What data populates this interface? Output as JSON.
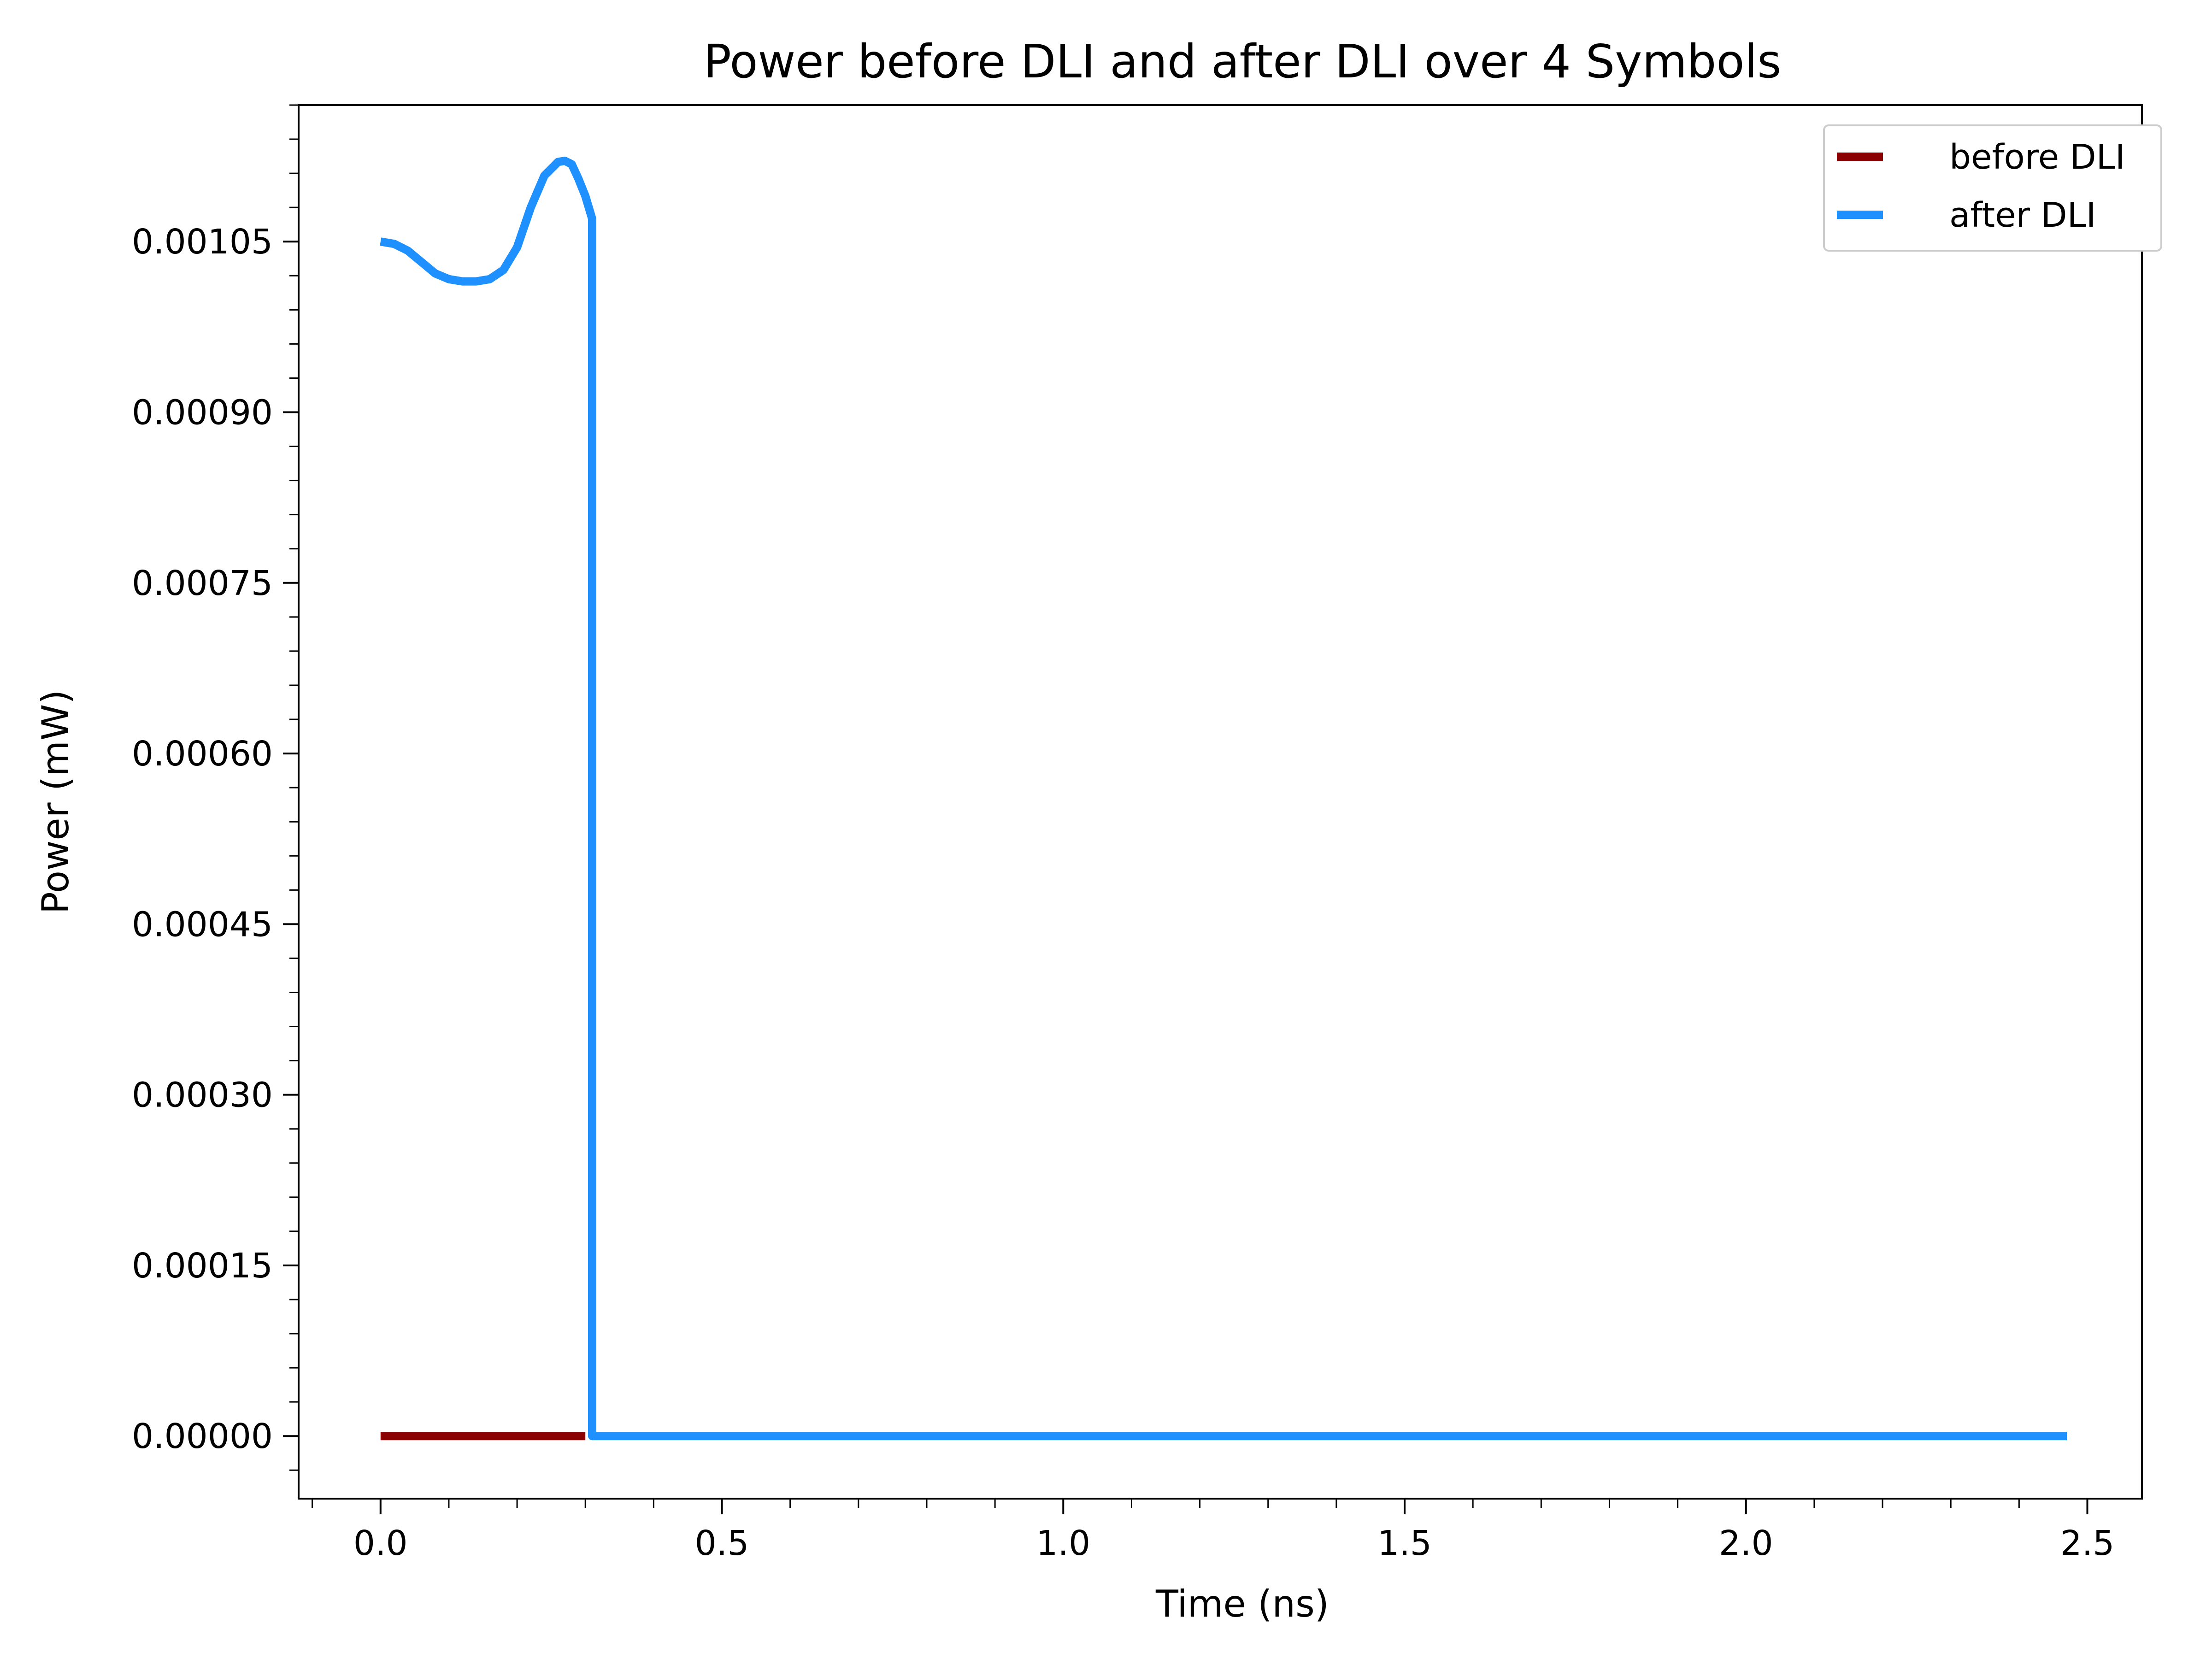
{
  "chart_data": {
    "type": "line",
    "title": "Power before DLI and after DLI over 4 Symbols",
    "xlabel": "Time (ns)",
    "ylabel": "Power (mW)",
    "xlim": [
      -0.12,
      2.58
    ],
    "ylim": [
      -5.5e-05,
      0.00117
    ],
    "x_ticks": [
      0.0,
      0.5,
      1.0,
      1.5,
      2.0,
      2.5
    ],
    "x_tick_labels": [
      "0.0",
      "0.5",
      "1.0",
      "1.5",
      "2.0",
      "2.5"
    ],
    "x_minor_step": 0.1,
    "y_ticks": [
      0.0,
      0.00015,
      0.0003,
      0.00045,
      0.0006,
      0.00075,
      0.0009,
      0.00105
    ],
    "y_tick_labels": [
      "0.00000",
      "0.00015",
      "0.00030",
      "0.00045",
      "0.00060",
      "0.00075",
      "0.00090",
      "0.00105"
    ],
    "y_minor_step": 3e-05,
    "grid": false,
    "legend_position": "top-right",
    "series": [
      {
        "name": "before DLI",
        "color": "#8b0000",
        "x": [
          0.0,
          0.3
        ],
        "y": [
          0.0,
          0.0
        ]
      },
      {
        "name": "after DLI",
        "color": "#1e90ff",
        "x": [
          0.0,
          0.02,
          0.04,
          0.06,
          0.08,
          0.1,
          0.12,
          0.14,
          0.16,
          0.18,
          0.2,
          0.22,
          0.24,
          0.26,
          0.27,
          0.28,
          0.29,
          0.3,
          0.31,
          0.31,
          0.5,
          1.0,
          1.5,
          2.0,
          2.47
        ],
        "y": [
          0.00105,
          0.001048,
          0.001042,
          0.001032,
          0.001022,
          0.001017,
          0.001015,
          0.001015,
          0.001017,
          0.001025,
          0.001045,
          0.00108,
          0.001108,
          0.00112,
          0.001121,
          0.001118,
          0.001105,
          0.00109,
          0.00107,
          0.0,
          0.0,
          0.0,
          0.0,
          0.0,
          0.0
        ]
      }
    ]
  }
}
